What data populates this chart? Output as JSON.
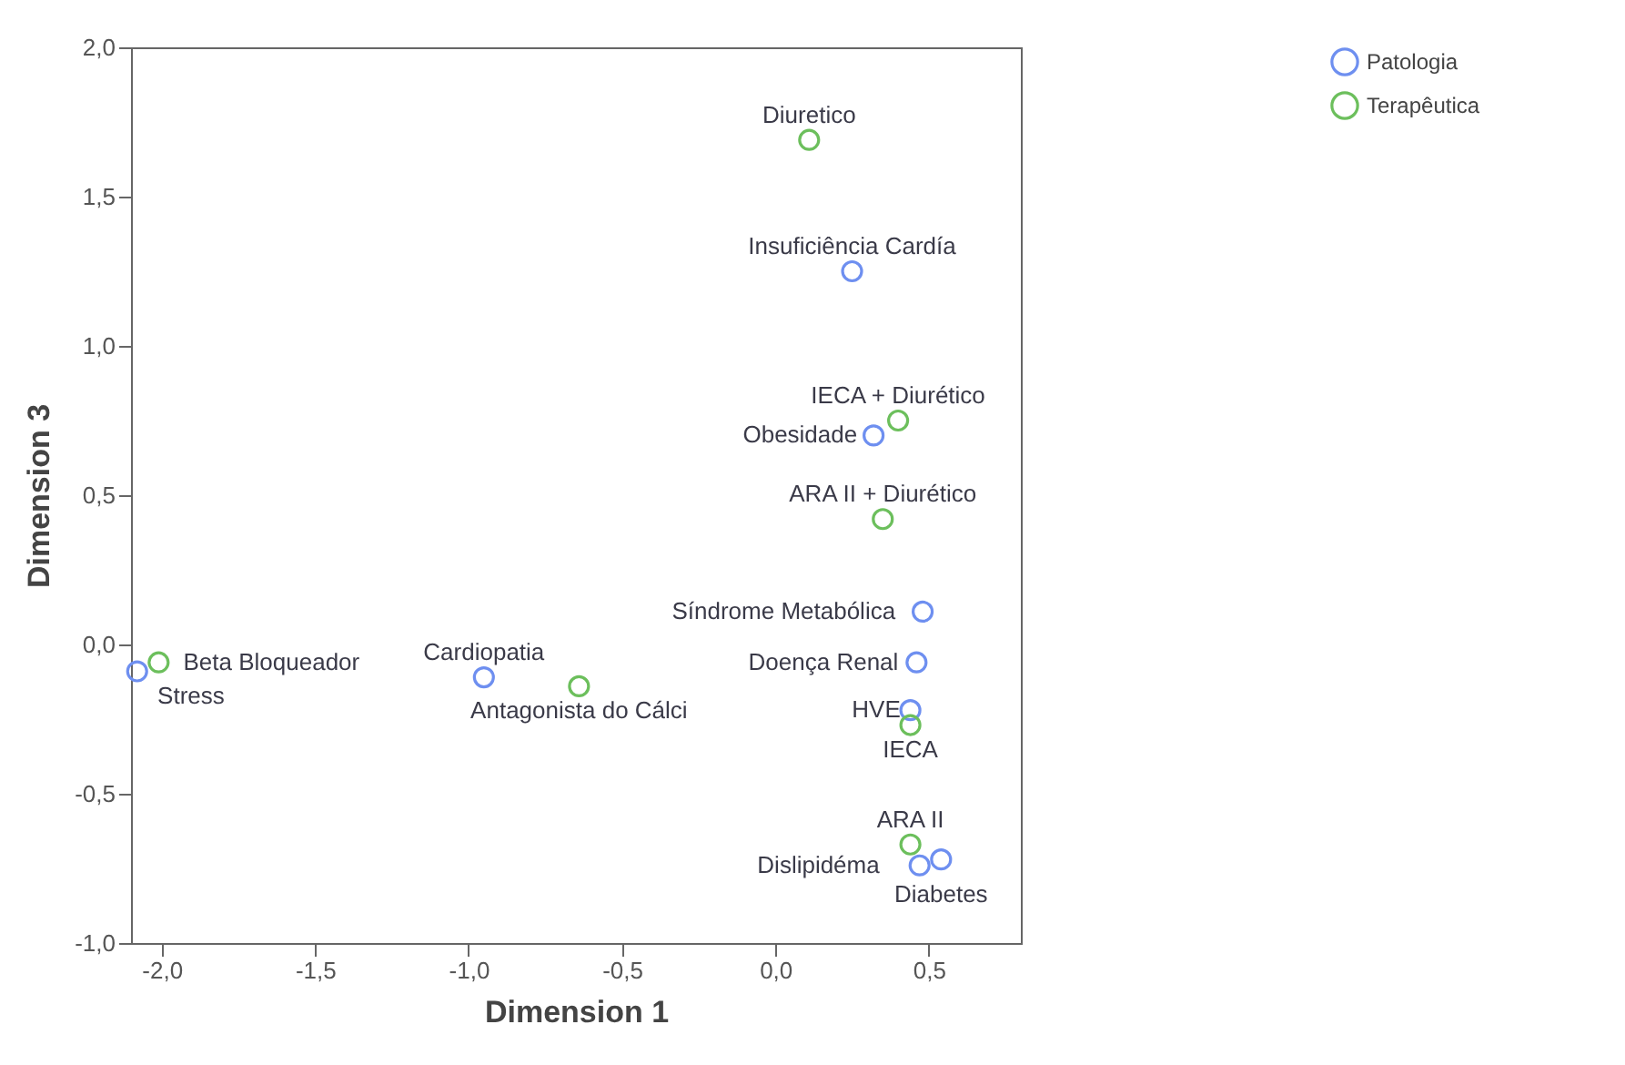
{
  "chart_data": {
    "type": "scatter",
    "xlabel": "Dimension 1",
    "ylabel": "Dimension 3",
    "xlim": [
      -2.1,
      0.8
    ],
    "ylim": [
      -1.0,
      2.0
    ],
    "xticks": [
      {
        "value": -2.0,
        "label": "-2,0"
      },
      {
        "value": -1.5,
        "label": "-1,5"
      },
      {
        "value": -1.0,
        "label": "-1,0"
      },
      {
        "value": -0.5,
        "label": "-0,5"
      },
      {
        "value": 0.0,
        "label": "0,0"
      },
      {
        "value": 0.5,
        "label": "0,5"
      }
    ],
    "yticks": [
      {
        "value": -1.0,
        "label": "-1,0"
      },
      {
        "value": -0.5,
        "label": "-0,5"
      },
      {
        "value": 0.0,
        "label": "0,0"
      },
      {
        "value": 0.5,
        "label": "0,5"
      },
      {
        "value": 1.0,
        "label": "1,0"
      },
      {
        "value": 1.5,
        "label": "1,5"
      },
      {
        "value": 2.0,
        "label": "2,0"
      }
    ],
    "grid": false,
    "legend": "top right",
    "marker": "circle",
    "series": [
      {
        "name": "Patologia",
        "color": "#6e8ff0",
        "x": [
          0.25,
          0.32,
          0.48,
          0.46,
          -0.95,
          0.44,
          0.47,
          0.54,
          -2.08
        ],
        "values": [
          1.25,
          0.7,
          0.11,
          -0.06,
          -0.11,
          -0.22,
          -0.74,
          -0.72,
          -0.09
        ]
      },
      {
        "name": "Terapêutica",
        "color": "#6cbf5c",
        "x": [
          0.11,
          0.4,
          0.35,
          -2.01,
          -0.64,
          0.44,
          0.44
        ],
        "values": [
          1.69,
          0.75,
          0.42,
          -0.06,
          -0.14,
          -0.27,
          -0.67
        ]
      }
    ],
    "annotations": [
      {
        "text": "Diuretico",
        "x": 0.11,
        "y": 1.69
      },
      {
        "text": "Insuficiência Cardía",
        "x": 0.25,
        "y": 1.25
      },
      {
        "text": "IECA + Diurético",
        "x": 0.4,
        "y": 0.75
      },
      {
        "text": "Obesidade",
        "x": 0.32,
        "y": 0.7
      },
      {
        "text": "ARA II + Diurético",
        "x": 0.35,
        "y": 0.42
      },
      {
        "text": "Síndrome Metabólica",
        "x": 0.48,
        "y": 0.11
      },
      {
        "text": "Beta Bloqueador",
        "x": -2.01,
        "y": -0.06
      },
      {
        "text": "Antagonista do Cálci",
        "x": -0.64,
        "y": -0.14
      },
      {
        "text": "Stress",
        "x": -2.08,
        "y": -0.09
      },
      {
        "text": "Cardiopatia",
        "x": -0.95,
        "y": -0.11
      },
      {
        "text": "HVE",
        "x": 0.44,
        "y": -0.22
      },
      {
        "text": "Doença Renal",
        "x": 0.46,
        "y": -0.06
      },
      {
        "text": "IECA",
        "x": 0.44,
        "y": -0.27
      },
      {
        "text": "ARA II",
        "x": 0.44,
        "y": -0.67
      },
      {
        "text": "Diabetes",
        "x": 0.54,
        "y": -0.72
      },
      {
        "text": "Dislipidéma",
        "x": 0.47,
        "y": -0.74
      }
    ]
  }
}
